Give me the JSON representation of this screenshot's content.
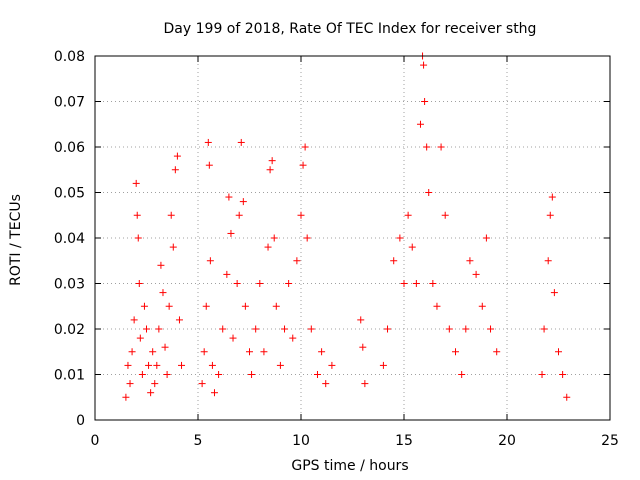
{
  "chart_data": {
    "type": "scatter",
    "title": "Day 199 of 2018, Rate Of TEC Index for receiver sthg",
    "xlabel": "GPS time / hours",
    "ylabel": "ROTI / TECUs",
    "xlim": [
      0,
      25
    ],
    "ylim": [
      0,
      0.08
    ],
    "x_ticks": [
      0,
      5,
      10,
      15,
      20,
      25
    ],
    "x_tick_labels": [
      "0",
      "5",
      "10",
      "15",
      "20",
      "25"
    ],
    "y_ticks": [
      0,
      0.01,
      0.02,
      0.03,
      0.04,
      0.05,
      0.06,
      0.07,
      0.08
    ],
    "y_tick_labels": [
      "0",
      "0.01",
      "0.02",
      "0.03",
      "0.04",
      "0.05",
      "0.06",
      "0.07",
      "0.08"
    ],
    "grid": true,
    "marker": "+",
    "color": "#ff0000",
    "series": [
      {
        "name": "ROTI",
        "points": [
          [
            1.5,
            0.005
          ],
          [
            1.6,
            0.012
          ],
          [
            1.7,
            0.008
          ],
          [
            1.8,
            0.015
          ],
          [
            1.9,
            0.022
          ],
          [
            2.0,
            0.052
          ],
          [
            2.05,
            0.045
          ],
          [
            2.1,
            0.04
          ],
          [
            2.15,
            0.03
          ],
          [
            2.2,
            0.018
          ],
          [
            2.3,
            0.01
          ],
          [
            2.4,
            0.025
          ],
          [
            2.5,
            0.02
          ],
          [
            2.6,
            0.012
          ],
          [
            2.7,
            0.006
          ],
          [
            2.8,
            0.015
          ],
          [
            2.9,
            0.008
          ],
          [
            3.0,
            0.012
          ],
          [
            3.1,
            0.02
          ],
          [
            3.2,
            0.034
          ],
          [
            3.3,
            0.028
          ],
          [
            3.4,
            0.016
          ],
          [
            3.5,
            0.01
          ],
          [
            3.6,
            0.025
          ],
          [
            3.7,
            0.045
          ],
          [
            3.8,
            0.038
          ],
          [
            3.9,
            0.055
          ],
          [
            4.0,
            0.058
          ],
          [
            4.1,
            0.022
          ],
          [
            4.2,
            0.012
          ],
          [
            5.2,
            0.008
          ],
          [
            5.3,
            0.015
          ],
          [
            5.4,
            0.025
          ],
          [
            5.5,
            0.061
          ],
          [
            5.55,
            0.056
          ],
          [
            5.6,
            0.035
          ],
          [
            5.7,
            0.012
          ],
          [
            5.8,
            0.006
          ],
          [
            6.0,
            0.01
          ],
          [
            6.2,
            0.02
          ],
          [
            6.4,
            0.032
          ],
          [
            6.5,
            0.049
          ],
          [
            6.6,
            0.041
          ],
          [
            6.7,
            0.018
          ],
          [
            6.9,
            0.03
          ],
          [
            7.0,
            0.045
          ],
          [
            7.1,
            0.061
          ],
          [
            7.2,
            0.048
          ],
          [
            7.3,
            0.025
          ],
          [
            7.5,
            0.015
          ],
          [
            7.6,
            0.01
          ],
          [
            7.8,
            0.02
          ],
          [
            8.0,
            0.03
          ],
          [
            8.2,
            0.015
          ],
          [
            8.4,
            0.038
          ],
          [
            8.5,
            0.055
          ],
          [
            8.6,
            0.057
          ],
          [
            8.7,
            0.04
          ],
          [
            8.8,
            0.025
          ],
          [
            9.0,
            0.012
          ],
          [
            9.2,
            0.02
          ],
          [
            9.4,
            0.03
          ],
          [
            9.6,
            0.018
          ],
          [
            9.8,
            0.035
          ],
          [
            10.0,
            0.045
          ],
          [
            10.1,
            0.056
          ],
          [
            10.2,
            0.06
          ],
          [
            10.3,
            0.04
          ],
          [
            10.5,
            0.02
          ],
          [
            10.8,
            0.01
          ],
          [
            11.0,
            0.015
          ],
          [
            11.2,
            0.008
          ],
          [
            11.5,
            0.012
          ],
          [
            12.9,
            0.022
          ],
          [
            13.0,
            0.016
          ],
          [
            13.1,
            0.008
          ],
          [
            14.0,
            0.012
          ],
          [
            14.2,
            0.02
          ],
          [
            14.5,
            0.035
          ],
          [
            14.8,
            0.04
          ],
          [
            15.0,
            0.03
          ],
          [
            15.2,
            0.045
          ],
          [
            15.4,
            0.038
          ],
          [
            15.6,
            0.03
          ],
          [
            15.8,
            0.065
          ],
          [
            15.9,
            0.08
          ],
          [
            15.95,
            0.078
          ],
          [
            16.0,
            0.07
          ],
          [
            16.1,
            0.06
          ],
          [
            16.2,
            0.05
          ],
          [
            16.4,
            0.03
          ],
          [
            16.6,
            0.025
          ],
          [
            16.8,
            0.06
          ],
          [
            17.0,
            0.045
          ],
          [
            17.2,
            0.02
          ],
          [
            17.5,
            0.015
          ],
          [
            17.8,
            0.01
          ],
          [
            18.0,
            0.02
          ],
          [
            18.2,
            0.035
          ],
          [
            18.5,
            0.032
          ],
          [
            18.8,
            0.025
          ],
          [
            19.0,
            0.04
          ],
          [
            19.2,
            0.02
          ],
          [
            19.5,
            0.015
          ],
          [
            21.7,
            0.01
          ],
          [
            21.8,
            0.02
          ],
          [
            22.0,
            0.035
          ],
          [
            22.1,
            0.045
          ],
          [
            22.2,
            0.049
          ],
          [
            22.3,
            0.028
          ],
          [
            22.5,
            0.015
          ],
          [
            22.7,
            0.01
          ],
          [
            22.9,
            0.005
          ]
        ]
      }
    ]
  }
}
